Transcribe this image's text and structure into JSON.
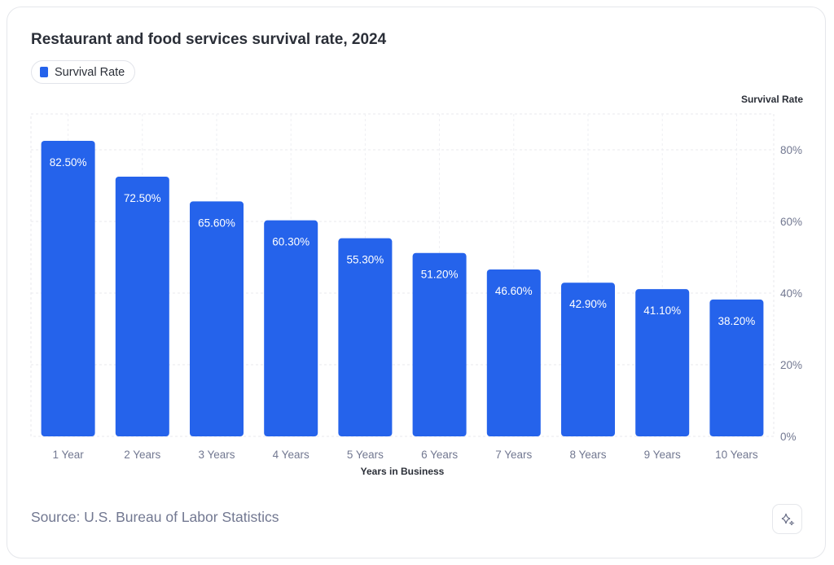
{
  "chart_data": {
    "type": "bar",
    "title": "Restaurant and food services survival rate, 2024",
    "xlabel": "Years in Business",
    "ylabel": "Survival Rate",
    "categories": [
      "1 Year",
      "2 Years",
      "3 Years",
      "4 Years",
      "5 Years",
      "6 Years",
      "7 Years",
      "8 Years",
      "9 Years",
      "10 Years"
    ],
    "series": [
      {
        "name": "Survival Rate",
        "values": [
          82.5,
          72.5,
          65.6,
          60.3,
          55.3,
          51.2,
          46.6,
          42.9,
          41.1,
          38.2
        ]
      }
    ],
    "data_labels": [
      "82.50%",
      "72.50%",
      "65.60%",
      "60.30%",
      "55.30%",
      "51.20%",
      "46.60%",
      "42.90%",
      "41.10%",
      "38.20%"
    ],
    "yticks": [
      0,
      20,
      40,
      60,
      80
    ],
    "ytick_labels": [
      "0%",
      "20%",
      "40%",
      "60%",
      "80%"
    ],
    "ylim": [
      0,
      90
    ],
    "y_axis_side": "right",
    "grid": true,
    "legend_placement": "top-left",
    "color": "#2563eb"
  },
  "source": "Source: U.S. Bureau of Labor Statistics",
  "ai_button_icon": "sparkle-icon"
}
